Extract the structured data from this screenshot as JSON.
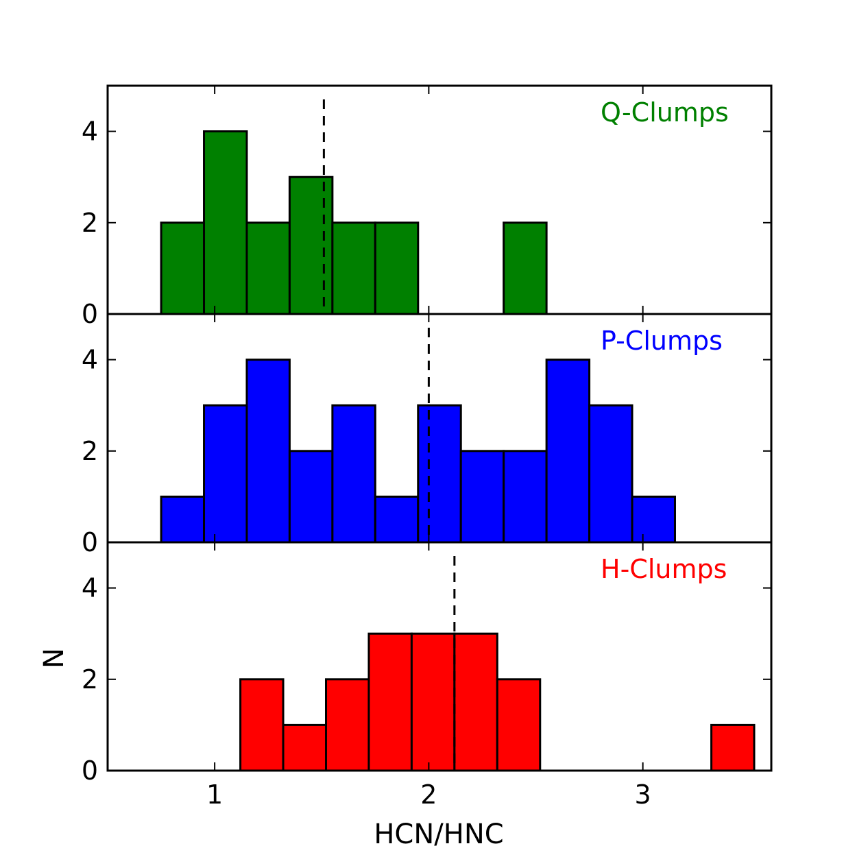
{
  "chart_data": {
    "type": "histogram",
    "xlabel": "HCN/HNC",
    "ylabel": "N",
    "xlim": [
      0.5,
      3.6
    ],
    "ylim": [
      0,
      5
    ],
    "xticks": [
      1,
      2,
      3
    ],
    "yticks": [
      0,
      2,
      4
    ],
    "panels": [
      {
        "name": "Q-Clumps",
        "label": "Q-Clumps",
        "color": "#008000",
        "median": 1.51,
        "bins": [
          {
            "x0": 0.75,
            "x1": 0.95,
            "count": 2
          },
          {
            "x0": 0.95,
            "x1": 1.15,
            "count": 4
          },
          {
            "x0": 1.15,
            "x1": 1.35,
            "count": 2
          },
          {
            "x0": 1.35,
            "x1": 1.55,
            "count": 3
          },
          {
            "x0": 1.55,
            "x1": 1.75,
            "count": 2
          },
          {
            "x0": 1.75,
            "x1": 1.95,
            "count": 2
          },
          {
            "x0": 2.35,
            "x1": 2.55,
            "count": 2
          }
        ]
      },
      {
        "name": "P-Clumps",
        "label": "P-Clumps",
        "color": "#0000ff",
        "median": 2.0,
        "bins": [
          {
            "x0": 0.75,
            "x1": 0.95,
            "count": 1
          },
          {
            "x0": 0.95,
            "x1": 1.15,
            "count": 3
          },
          {
            "x0": 1.15,
            "x1": 1.35,
            "count": 4
          },
          {
            "x0": 1.35,
            "x1": 1.55,
            "count": 2
          },
          {
            "x0": 1.55,
            "x1": 1.75,
            "count": 3
          },
          {
            "x0": 1.75,
            "x1": 1.95,
            "count": 1
          },
          {
            "x0": 1.95,
            "x1": 2.15,
            "count": 3
          },
          {
            "x0": 2.15,
            "x1": 2.35,
            "count": 2
          },
          {
            "x0": 2.35,
            "x1": 2.55,
            "count": 2
          },
          {
            "x0": 2.55,
            "x1": 2.75,
            "count": 4
          },
          {
            "x0": 2.75,
            "x1": 2.95,
            "count": 3
          },
          {
            "x0": 2.95,
            "x1": 3.15,
            "count": 1
          }
        ]
      },
      {
        "name": "H-Clumps",
        "label": "H-Clumps",
        "color": "#ff0000",
        "median": 2.12,
        "bins": [
          {
            "x0": 1.12,
            "x1": 1.32,
            "count": 2
          },
          {
            "x0": 1.32,
            "x1": 1.52,
            "count": 1
          },
          {
            "x0": 1.52,
            "x1": 1.72,
            "count": 2
          },
          {
            "x0": 1.72,
            "x1": 1.92,
            "count": 3
          },
          {
            "x0": 1.92,
            "x1": 2.12,
            "count": 3
          },
          {
            "x0": 2.12,
            "x1": 2.32,
            "count": 3
          },
          {
            "x0": 2.32,
            "x1": 2.52,
            "count": 2
          },
          {
            "x0": 3.32,
            "x1": 3.52,
            "count": 1
          }
        ]
      }
    ]
  }
}
